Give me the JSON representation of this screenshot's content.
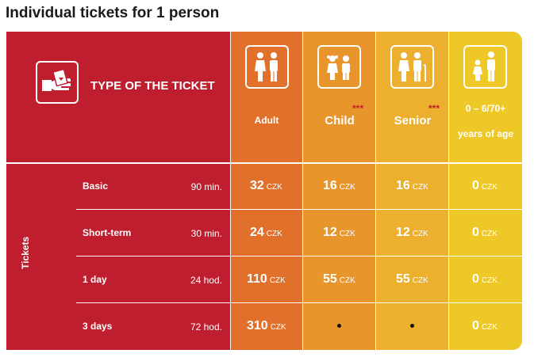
{
  "title": "Individual tickets for 1 person",
  "header": {
    "type_label": "TYPE OF THE TICKET",
    "adult": "Adult",
    "child": "Child",
    "senior": "Senior",
    "child_mark": "***",
    "senior_mark": "***",
    "age_range": "0 – 6/70+",
    "age_suffix": "years of age"
  },
  "section_label": "Tickets",
  "currency": "CZK",
  "rows": [
    {
      "name": "Basic",
      "duration": "90 min.",
      "adult": "32",
      "child": "16",
      "senior": "16",
      "age": "0"
    },
    {
      "name": "Short-term",
      "duration": "30 min.",
      "adult": "24",
      "child": "12",
      "senior": "12",
      "age": "0"
    },
    {
      "name": "1 day",
      "duration": "24 hod.",
      "adult": "110",
      "child": "55",
      "senior": "55",
      "age": "0"
    },
    {
      "name": "3 days",
      "duration": "72 hod.",
      "adult": "310",
      "child": "•",
      "senior": "•",
      "age": "0"
    }
  ],
  "colors": {
    "type_col": "#bf1e2e",
    "adult_col": "#e0702a",
    "child_col": "#e8952c",
    "senior_col": "#ecaf2e",
    "age_col": "#eec826"
  },
  "icons": [
    "ticket-hand-icon",
    "adult-couple-icon",
    "children-icon",
    "senior-couple-icon",
    "parent-child-icon"
  ]
}
